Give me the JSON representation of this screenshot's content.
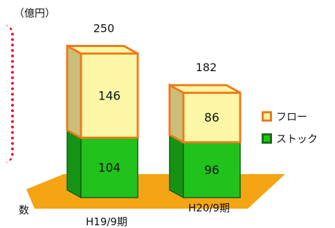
{
  "unit_label": "（億円）",
  "cut_off_text": "数",
  "legend": [
    {
      "label": "フロー",
      "fill": "#f5f0a0",
      "border": "#e87a1e"
    },
    {
      "label": "ストック",
      "fill": "#22c21c",
      "border": "#136f0f"
    }
  ],
  "colors": {
    "flow_fill": "#fbf7a6",
    "flow_side": "#c9bf7a",
    "flow_edge": "#ef7a1a",
    "stock_fill": "#22c21c",
    "stock_side": "#169214",
    "stock_edge": "#0e5e0b",
    "floor": "#f5a413",
    "frag_red": "#e8102a"
  },
  "chart_data": {
    "type": "bar",
    "stacked": true,
    "three_d": true,
    "categories": [
      "H19/9期",
      "H20/9期"
    ],
    "series": [
      {
        "name": "ストック",
        "values": [
          104,
          96
        ]
      },
      {
        "name": "フロー",
        "values": [
          146,
          86
        ]
      }
    ],
    "totals": [
      250,
      182
    ],
    "ylim": [
      0,
      270
    ],
    "legend_position": "right"
  }
}
